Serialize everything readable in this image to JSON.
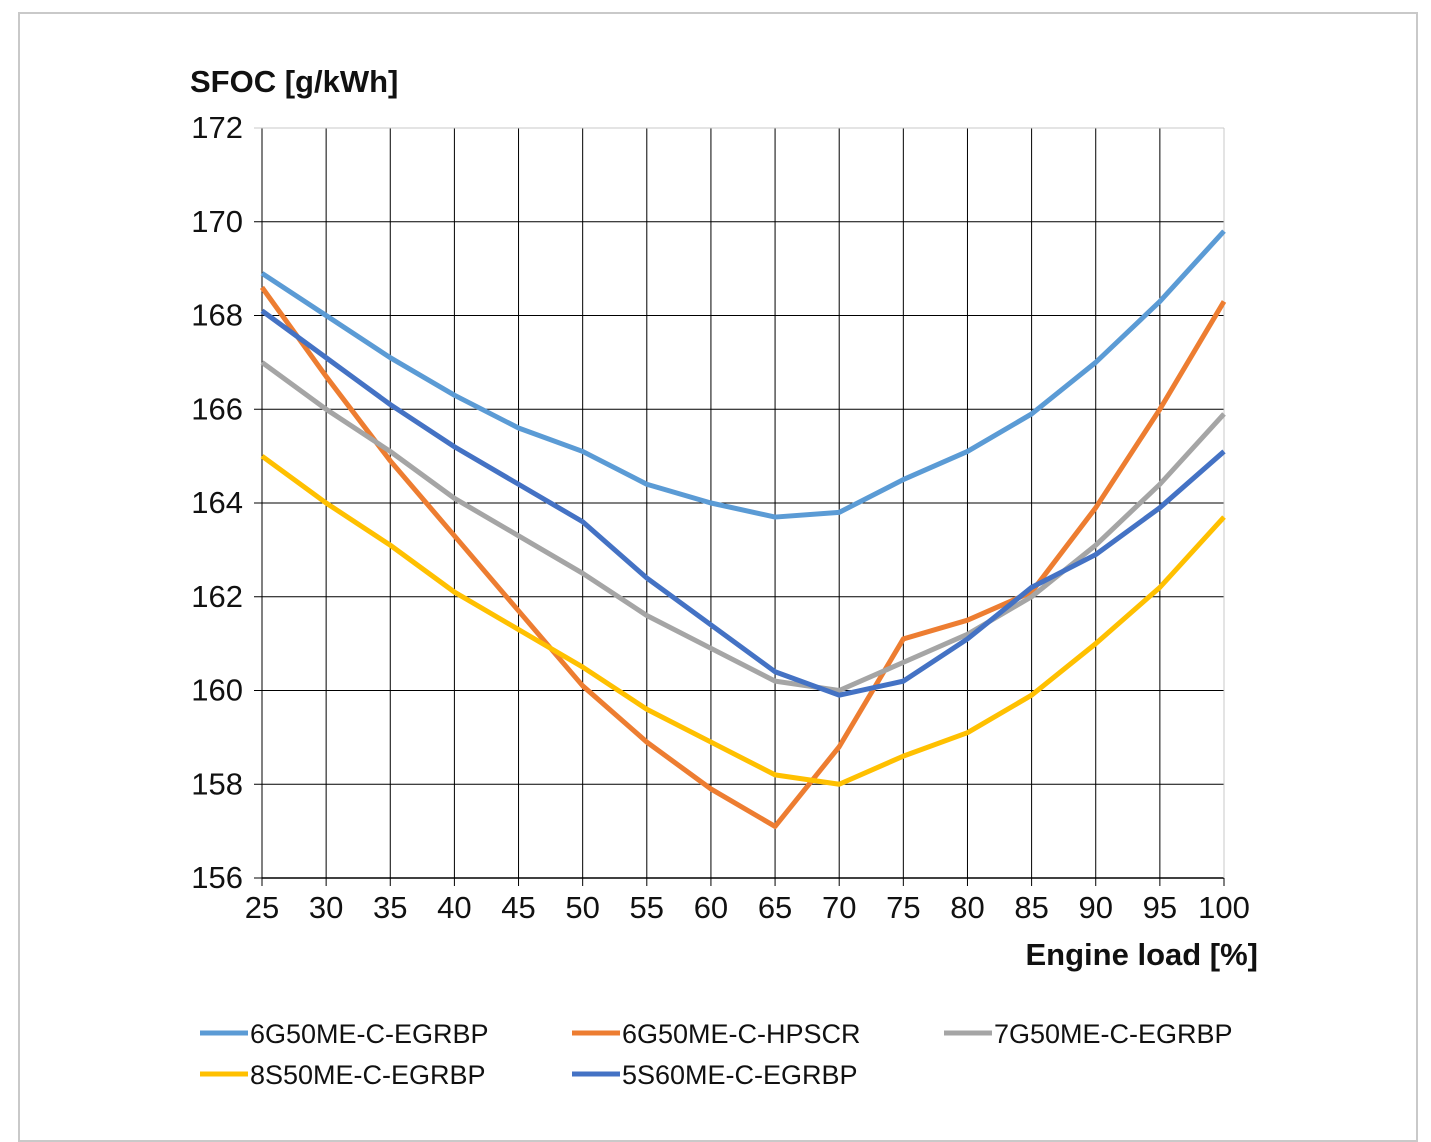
{
  "chart_data": {
    "type": "line",
    "title": "",
    "ylabel": "SFOC [g/kWh]",
    "xlabel": "Engine load [%]",
    "x": [
      25,
      30,
      35,
      40,
      45,
      50,
      55,
      60,
      65,
      70,
      75,
      80,
      85,
      90,
      95,
      100
    ],
    "xlim": [
      25,
      100
    ],
    "ylim": [
      156,
      172
    ],
    "yticks": [
      156,
      158,
      160,
      162,
      164,
      166,
      168,
      170,
      172
    ],
    "grid": true,
    "legend_position": "bottom",
    "series": [
      {
        "name": "6G50ME-C-EGRBP",
        "color": "#5b9bd5",
        "values": [
          168.9,
          168.0,
          167.1,
          166.3,
          165.6,
          165.1,
          164.4,
          164.0,
          163.7,
          163.8,
          164.5,
          165.1,
          165.9,
          167.0,
          168.3,
          169.8
        ]
      },
      {
        "name": "6G50ME-C-HPSCR",
        "color": "#ed7d31",
        "values": [
          168.6,
          166.7,
          164.9,
          163.3,
          161.7,
          160.1,
          158.9,
          157.9,
          157.1,
          158.8,
          161.1,
          161.5,
          162.1,
          163.9,
          166.0,
          168.3
        ]
      },
      {
        "name": "7G50ME-C-EGRBP",
        "color": "#a5a5a5",
        "values": [
          167.0,
          166.0,
          165.1,
          164.1,
          163.3,
          162.5,
          161.6,
          160.9,
          160.2,
          160.0,
          160.6,
          161.2,
          162.0,
          163.1,
          164.4,
          165.9
        ]
      },
      {
        "name": "8S50ME-C-EGRBP",
        "color": "#ffc000",
        "values": [
          165.0,
          164.0,
          163.1,
          162.1,
          161.3,
          160.5,
          159.6,
          158.9,
          158.2,
          158.0,
          158.6,
          159.1,
          159.9,
          161.0,
          162.2,
          163.7
        ]
      },
      {
        "name": "5S60ME-C-EGRBP",
        "color": "#4472c4",
        "values": [
          168.1,
          167.1,
          166.1,
          165.2,
          164.4,
          163.6,
          162.4,
          161.4,
          160.4,
          159.9,
          160.2,
          161.1,
          162.2,
          162.9,
          163.9,
          165.1
        ]
      }
    ]
  }
}
